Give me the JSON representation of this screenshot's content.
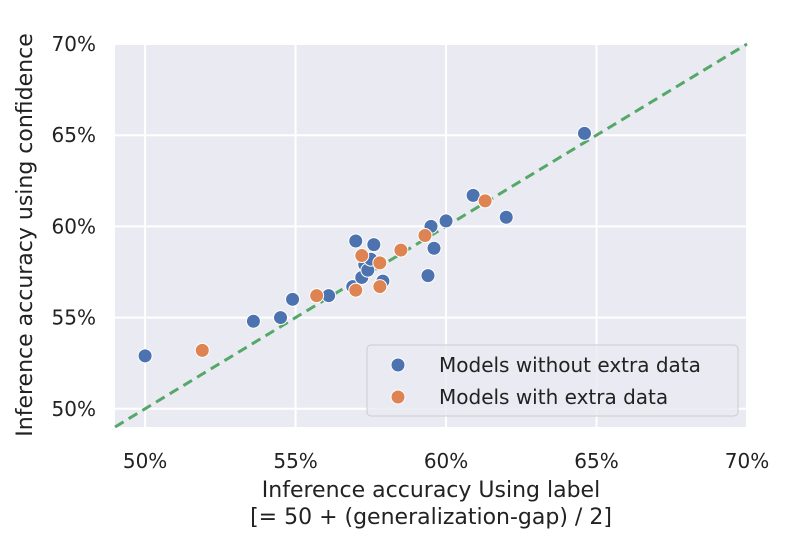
{
  "chart_data": {
    "type": "scatter",
    "xlabel_line1": "Inference accuracy Using label",
    "xlabel_line2": "[= 50 + (generalization-gap) / 2]",
    "ylabel": "Inference accuracy using confidence",
    "xlim": [
      49,
      70
    ],
    "ylim": [
      49,
      70
    ],
    "x_ticks": [
      50,
      55,
      60,
      65,
      70
    ],
    "y_ticks": [
      50,
      55,
      60,
      65,
      70
    ],
    "x_tick_labels": [
      "50%",
      "55%",
      "60%",
      "65%",
      "70%"
    ],
    "y_tick_labels": [
      "50%",
      "55%",
      "60%",
      "65%",
      "70%"
    ],
    "grid": true,
    "legend_position": "bottom-right",
    "reference_line": {
      "style": "dashed",
      "color": "#55a868",
      "x": [
        49,
        70
      ],
      "y": [
        49,
        70
      ]
    },
    "series": [
      {
        "name": "Models without extra data",
        "color": "#4c72b0",
        "points": [
          {
            "x": 50.0,
            "y": 52.9
          },
          {
            "x": 53.6,
            "y": 54.8
          },
          {
            "x": 54.5,
            "y": 55.0
          },
          {
            "x": 54.9,
            "y": 56.0
          },
          {
            "x": 56.1,
            "y": 56.2
          },
          {
            "x": 56.9,
            "y": 56.7
          },
          {
            "x": 57.0,
            "y": 59.2
          },
          {
            "x": 57.2,
            "y": 57.2
          },
          {
            "x": 57.3,
            "y": 57.9
          },
          {
            "x": 57.4,
            "y": 57.6
          },
          {
            "x": 57.5,
            "y": 58.2
          },
          {
            "x": 57.6,
            "y": 59.0
          },
          {
            "x": 57.9,
            "y": 57.0
          },
          {
            "x": 59.4,
            "y": 57.3
          },
          {
            "x": 59.5,
            "y": 60.0
          },
          {
            "x": 59.6,
            "y": 58.8
          },
          {
            "x": 60.0,
            "y": 60.3
          },
          {
            "x": 60.9,
            "y": 61.7
          },
          {
            "x": 62.0,
            "y": 60.5
          },
          {
            "x": 64.6,
            "y": 65.1
          }
        ]
      },
      {
        "name": "Models with extra data",
        "color": "#dd8452",
        "points": [
          {
            "x": 51.9,
            "y": 53.2
          },
          {
            "x": 55.7,
            "y": 56.2
          },
          {
            "x": 57.0,
            "y": 56.5
          },
          {
            "x": 57.2,
            "y": 58.4
          },
          {
            "x": 57.8,
            "y": 56.7
          },
          {
            "x": 57.8,
            "y": 58.0
          },
          {
            "x": 58.5,
            "y": 58.7
          },
          {
            "x": 59.3,
            "y": 59.5
          },
          {
            "x": 61.3,
            "y": 61.4
          }
        ]
      }
    ]
  }
}
